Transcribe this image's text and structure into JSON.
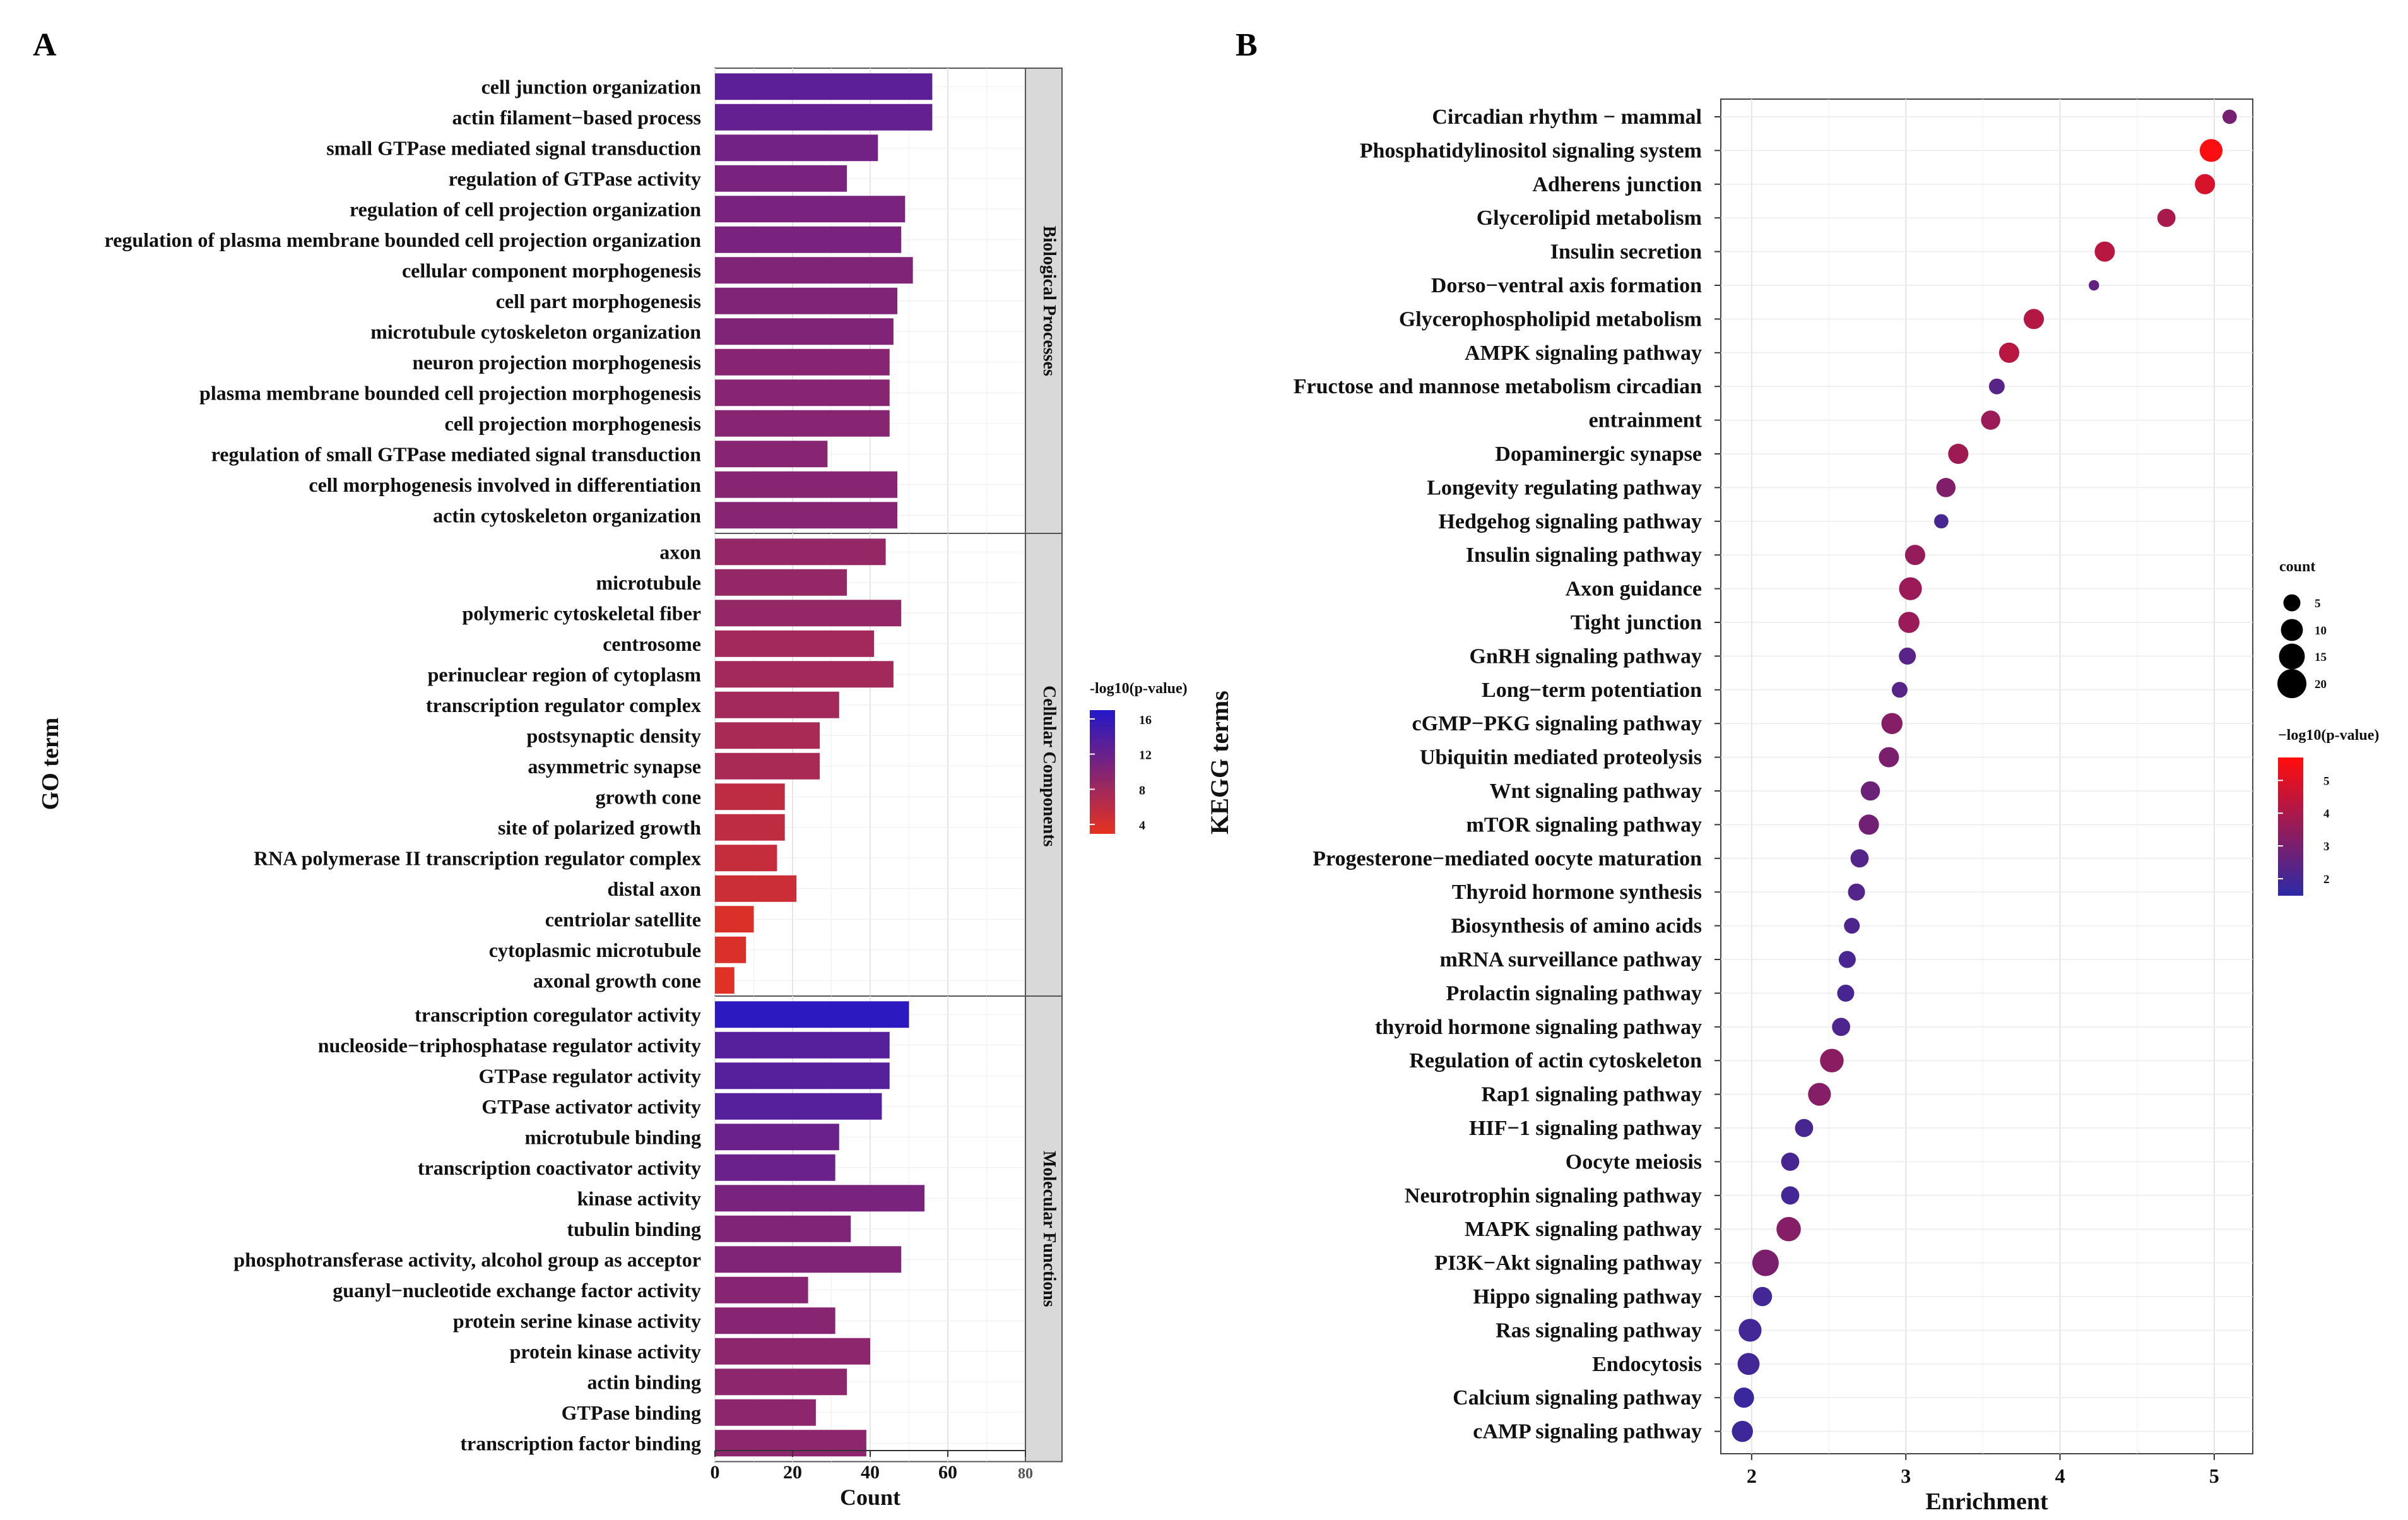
{
  "panels": {
    "a_letter": "A",
    "b_letter": "B"
  },
  "chart_data": [
    {
      "type": "bar",
      "orientation": "horizontal",
      "panel": "A",
      "xlabel": "Count",
      "ylabel": "GO term",
      "xlim": [
        0,
        80
      ],
      "xticks": [
        0,
        20,
        40,
        60,
        80
      ],
      "colorbar": {
        "title": "-log10(p-value)",
        "ticks": [
          4,
          8,
          12,
          16
        ],
        "range": [
          3,
          17
        ],
        "low_color": "#e8321e",
        "high_color": "#2518c6"
      },
      "facets": [
        {
          "name": "Biological Processes",
          "categories": [
            "cell junction organization",
            "actin filament−based process",
            "small GTPase mediated signal transduction",
            "regulation of GTPase activity",
            "regulation of cell projection organization",
            "regulation of plasma membrane bounded cell projection organization",
            "cellular component morphogenesis",
            "cell part morphogenesis",
            "microtubule cytoskeleton organization",
            "neuron projection morphogenesis",
            "plasma membrane bounded cell projection morphogenesis",
            "cell projection morphogenesis",
            "regulation of small GTPase mediated signal transduction",
            "cell morphogenesis involved in differentiation",
            "actin cytoskeleton organization"
          ],
          "values": [
            56,
            56,
            42,
            34,
            49,
            48,
            51,
            47,
            46,
            45,
            45,
            45,
            29,
            47,
            47
          ],
          "neglog10p": [
            13,
            12.5,
            11.5,
            11,
            11,
            11,
            10.5,
            10.5,
            10.5,
            10,
            10,
            10,
            10,
            10,
            10
          ]
        },
        {
          "name": "Cellular Components",
          "categories": [
            "axon",
            "microtubule",
            "polymeric cytoskeletal fiber",
            "centrosome",
            "perinuclear region of cytoplasm",
            "transcription regulator complex",
            "postsynaptic density",
            "asymmetric synapse",
            "growth cone",
            "site of polarized growth",
            "RNA polymerase II transcription regulator complex",
            "distal axon",
            "centriolar satellite",
            "cytoplasmic microtubule",
            "axonal growth cone"
          ],
          "values": [
            44,
            34,
            48,
            41,
            46,
            32,
            27,
            27,
            18,
            18,
            16,
            21,
            10,
            8,
            5
          ],
          "neglog10p": [
            9,
            9,
            9,
            8,
            8,
            8,
            7.5,
            7.5,
            6,
            6,
            5.5,
            5,
            4,
            4,
            3.5
          ]
        },
        {
          "name": "Molecular Functions",
          "categories": [
            "transcription coregulator activity",
            "nucleoside−triphosphatase regulator activity",
            "GTPase regulator activity",
            "GTPase activator activity",
            "microtubule binding",
            "transcription coactivator activity",
            "kinase activity",
            "tubulin binding",
            "phosphotransferase activity, alcohol group as acceptor",
            "guanyl−nucleotide exchange factor activity",
            "protein serine kinase activity",
            "protein kinase activity",
            "actin binding",
            "GTPase binding",
            "transcription factor binding"
          ],
          "values": [
            50,
            45,
            45,
            43,
            32,
            31,
            54,
            35,
            48,
            24,
            31,
            40,
            34,
            26,
            39
          ],
          "neglog10p": [
            16.5,
            13.5,
            13.5,
            13.5,
            12,
            12,
            11,
            10.5,
            10.5,
            10,
            10,
            9.5,
            9.5,
            9.5,
            9.5
          ]
        }
      ]
    },
    {
      "type": "scatter",
      "panel": "B",
      "xlabel": "Enrichment",
      "ylabel": "KEGG terms",
      "xlim": [
        1.8,
        5.25
      ],
      "xticks": [
        2,
        3,
        4,
        5
      ],
      "size_legend": {
        "title": "count",
        "values": [
          5,
          10,
          15,
          20
        ]
      },
      "colorbar": {
        "title": "−log10(p-value)",
        "ticks": [
          2,
          3,
          4,
          5
        ],
        "range": [
          1.5,
          5.7
        ],
        "low_color": "#2a2aa8",
        "high_color": "#ff0d0d"
      },
      "categories": [
        "Circadian rhythm − mammal",
        "Phosphatidylinositol signaling system",
        "Adherens junction",
        "Glycerolipid metabolism",
        "Insulin secretion",
        "Dorso−ventral axis formation",
        "Glycerophospholipid metabolism",
        "AMPK signaling pathway",
        "Fructose and mannose metabolism circadian",
        "entrainment",
        "Dopaminergic synapse",
        "Longevity regulating pathway",
        "Hedgehog signaling pathway",
        "Insulin signaling pathway",
        "Axon guidance",
        "Tight junction",
        "GnRH signaling pathway",
        "Long−term potentiation",
        "cGMP−PKG signaling pathway",
        "Ubiquitin mediated proteolysis",
        "Wnt signaling pathway",
        "mTOR signaling pathway",
        "Progesterone−mediated oocyte maturation",
        "Thyroid hormone synthesis",
        "Biosynthesis of amino acids",
        "mRNA surveillance pathway",
        "Prolactin signaling pathway",
        "thyroid hormone signaling pathway",
        "Regulation of actin cytoskeleton",
        "Rap1 signaling pathway",
        "HIF−1 signaling pathway",
        "Oocyte meiosis",
        "Neurotrophin signaling pathway",
        "MAPK signaling pathway",
        "PI3K−Akt signaling pathway",
        "Hippo signaling pathway",
        "Ras signaling pathway",
        "Endocytosis",
        "Calcium signaling pathway",
        "cAMP signaling pathway"
      ],
      "x": [
        5.1,
        4.98,
        4.94,
        4.69,
        4.29,
        4.22,
        3.83,
        3.67,
        3.59,
        3.55,
        3.34,
        3.26,
        3.23,
        3.06,
        3.03,
        3.02,
        3.01,
        2.96,
        2.91,
        2.89,
        2.77,
        2.76,
        2.7,
        2.68,
        2.65,
        2.62,
        2.61,
        2.58,
        2.52,
        2.44,
        2.34,
        2.25,
        2.25,
        2.24,
        2.09,
        2.07,
        1.99,
        1.98,
        1.95,
        1.94
      ],
      "count": [
        3,
        11,
        8,
        6,
        8,
        1,
        8,
        8,
        4,
        7,
        8,
        7,
        3,
        8,
        11,
        9,
        5,
        4,
        9,
        8,
        7,
        8,
        6,
        5,
        4,
        5,
        5,
        6,
        12,
        11,
        6,
        6,
        6,
        13,
        16,
        7,
        11,
        10,
        8,
        9
      ],
      "neglog10p": [
        3.0,
        5.6,
        4.9,
        4.0,
        4.3,
        2.6,
        4.2,
        4.3,
        2.4,
        3.7,
        3.8,
        3.2,
        2.1,
        3.6,
        3.7,
        3.7,
        2.4,
        2.4,
        3.3,
        3.1,
        2.8,
        2.9,
        2.3,
        2.3,
        2.2,
        2.1,
        2.1,
        2.2,
        3.4,
        3.3,
        2.1,
        2.1,
        2.0,
        3.3,
        3.1,
        2.0,
        2.0,
        2.0,
        1.8,
        1.9
      ]
    }
  ]
}
